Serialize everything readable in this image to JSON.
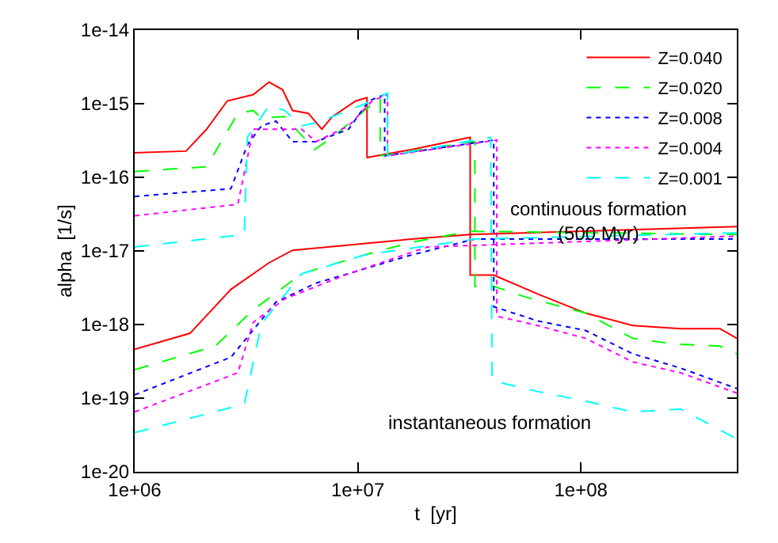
{
  "chart_data": {
    "type": "line",
    "xlabel": "t  [yr]",
    "ylabel": "alpha  [1/s]",
    "log": "xy",
    "marker": "none",
    "legend": "top right",
    "xlim": [
      1000000.0,
      500000000.0
    ],
    "xticks": [
      {
        "value": 1000000.0,
        "label": "1e+06"
      },
      {
        "value": 10000000.0,
        "label": "1e+07"
      },
      {
        "value": 100000000.0,
        "label": "1e+08"
      }
    ],
    "ylim": [
      1e-20,
      1e-14
    ],
    "yticks": [
      {
        "value": 1e-20,
        "label": "1e-20"
      },
      {
        "value": 1e-19,
        "label": "1e-19"
      },
      {
        "value": 1e-18,
        "label": "1e-18"
      },
      {
        "value": 1e-17,
        "label": "1e-17"
      },
      {
        "value": 1e-16,
        "label": "1e-16"
      },
      {
        "value": 1e-15,
        "label": "1e-15"
      },
      {
        "value": 1e-14,
        "label": "1e-14"
      }
    ],
    "annotations": [
      "continuous formation\n(500 Myr)",
      "instantaneous formation"
    ],
    "series": [
      {
        "name": "Z=0.040",
        "color": "#ff0000",
        "line_style": "solid",
        "x": [
          1000000.0,
          1700000.0,
          2100000.0,
          2600000.0,
          3400000.0,
          4000000.0,
          4600000.0,
          5100000.0,
          6000000.0,
          6900000.0,
          7700000.0,
          9800000.0,
          11000000.0,
          11000000.0,
          17400000.0,
          31900000.0,
          31900000.0,
          40700000.0,
          64000000.0,
          105000000.0,
          171000000.0,
          280000000.0,
          420000000.0,
          500000000.0
        ],
        "values": [
          2.16e-16,
          2.27e-16,
          4.5e-16,
          1.09e-15,
          1.33e-15,
          1.97e-15,
          1.55e-15,
          8.1e-16,
          7.4e-16,
          4.5e-16,
          6.7e-16,
          1.09e-15,
          1.21e-15,
          1.86e-16,
          2.38e-16,
          3.5e-16,
          4.7e-18,
          4.7e-18,
          2.6e-18,
          1.43e-18,
          9.7e-19,
          8.8e-19,
          8.8e-19,
          6.5e-19
        ]
      },
      {
        "name": "Z=0.020",
        "color": "#00ff00",
        "line_style": "dashed",
        "x": [
          1000000.0,
          2100000.0,
          2900000.0,
          3400000.0,
          3700000.0,
          4700000.0,
          6400000.0,
          7700000.0,
          12600000.0,
          12600000.0,
          33500000.0,
          33500000.0,
          40700000.0,
          57000000.0,
          105000000.0,
          171000000.0,
          267000000.0,
          420000000.0,
          500000000.0
        ],
        "values": [
          1.2e-16,
          1.39e-16,
          7.4e-16,
          8.1e-16,
          6.4e-16,
          6.7e-16,
          2.38e-16,
          3.5e-16,
          1.21e-15,
          1.96e-16,
          3.05e-16,
          3.3e-18,
          3.3e-18,
          2.34e-18,
          1.43e-18,
          6.5e-19,
          5.4e-19,
          5.1e-19,
          4e-19
        ]
      },
      {
        "name": "Z=0.008",
        "color": "#0000ff",
        "line_style": "dotted",
        "x": [
          1000000.0,
          2700000.0,
          3200000.0,
          3700000.0,
          4300000.0,
          5100000.0,
          6500000.0,
          9100000.0,
          11200000.0,
          13200000.0,
          13200000.0,
          40700000.0,
          40700000.0,
          64000000.0,
          105000000.0,
          171000000.0,
          280000000.0,
          500000000.0
        ],
        "values": [
          5.5e-17,
          7e-17,
          2.76e-16,
          5e-16,
          5.8e-16,
          3.05e-16,
          3.05e-16,
          4.5e-16,
          1.09e-15,
          1.33e-15,
          1.96e-16,
          3.2e-16,
          1.75e-18,
          1.12e-18,
          8.3e-19,
          4e-19,
          2.56e-19,
          1.35e-19
        ]
      },
      {
        "name": "Z=0.004",
        "color": "#ff00ff",
        "line_style": "dotted",
        "x": [
          1000000.0,
          2900000.0,
          3400000.0,
          4300000.0,
          5600000.0,
          6500000.0,
          9100000.0,
          11600000.0,
          13600000.0,
          13600000.0,
          42000000.0,
          42000000.0,
          64000000.0,
          105000000.0,
          171000000.0,
          280000000.0,
          500000000.0
        ],
        "values": [
          3e-17,
          4.3e-17,
          4.5e-16,
          4.5e-16,
          4.5e-16,
          3.05e-16,
          5e-16,
          1.09e-15,
          1.33e-15,
          1.96e-16,
          3.2e-16,
          1.3e-18,
          9.7e-19,
          6.5e-19,
          3.1e-19,
          2.21e-19,
          1.17e-19
        ]
      },
      {
        "name": "Z=0.001",
        "color": "#00ffff",
        "line_style": "dashed",
        "x": [
          1000000.0,
          3100000.0,
          3200000.0,
          4000000.0,
          4700000.0,
          5600000.0,
          6500000.0,
          8400000.0,
          11600000.0,
          13600000.0,
          13600000.0,
          39400000.0,
          40000000.0,
          64000000.0,
          105000000.0,
          171000000.0,
          280000000.0,
          500000000.0
        ],
        "values": [
          1.13e-17,
          1.67e-17,
          3.5e-16,
          9.4e-16,
          8.1e-16,
          5e-16,
          5.5e-16,
          7.4e-16,
          1.09e-15,
          1.4e-15,
          1.96e-16,
          3.5e-16,
          1.73e-19,
          1.23e-19,
          9.1e-20,
          6.5e-20,
          7.1e-20,
          2.8e-20
        ]
      },
      {
        "color": "#ff0000",
        "line_style": "solid",
        "x": [
          1000000.0,
          1770000.0,
          2700000.0,
          4000000.0,
          5100000.0,
          17400000.0,
          31900000.0,
          500000000.0
        ],
        "values": [
          4.6e-19,
          7.6e-19,
          3e-18,
          6.9e-18,
          1.02e-17,
          1.45e-17,
          1.67e-17,
          2.14e-17
        ]
      },
      {
        "color": "#00ff00",
        "line_style": "dashed",
        "x": [
          1000000.0,
          2300000.0,
          3400000.0,
          5600000.0,
          10700000.0,
          17400000.0,
          31900000.0,
          500000000.0
        ],
        "values": [
          2.44e-19,
          5.1e-19,
          1.58e-18,
          4.9e-18,
          8.8e-18,
          1.31e-17,
          1.85e-17,
          1.67e-17
        ]
      },
      {
        "color": "#0000ff",
        "line_style": "dotted",
        "x": [
          1000000.0,
          2700000.0,
          4300000.0,
          6500000.0,
          17400000.0,
          33500000.0,
          500000000.0
        ],
        "values": [
          1.11e-19,
          3.6e-19,
          2.02e-18,
          3.65e-18,
          8.8e-18,
          1.45e-17,
          1.45e-17
        ]
      },
      {
        "color": "#ff00ff",
        "line_style": "dotted",
        "x": [
          1000000.0,
          2900000.0,
          3400000.0,
          4700000.0,
          9100000.0,
          20500000.0,
          500000000.0
        ],
        "values": [
          6.5e-20,
          2.21e-19,
          1.07e-18,
          2.23e-18,
          4.9e-18,
          1.13e-17,
          1.59e-17
        ]
      },
      {
        "color": "#00ffff",
        "line_style": "dashed",
        "x": [
          1000000.0,
          3100000.0,
          3700000.0,
          5600000.0,
          10700000.0,
          33500000.0,
          500000000.0
        ],
        "values": [
          3.4e-20,
          8.3e-20,
          1.02e-18,
          4.9e-18,
          8.8e-18,
          1.45e-17,
          1.76e-17
        ]
      }
    ]
  }
}
